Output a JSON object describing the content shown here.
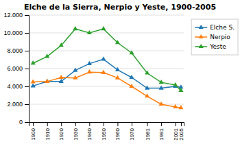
{
  "chart_data": {
    "type": "line",
    "title": "Elche de la Sierra, Nerpio y Yeste, 1900-2005",
    "x": [
      1900,
      1910,
      1920,
      1930,
      1940,
      1950,
      1960,
      1970,
      1981,
      1991,
      2001,
      2005
    ],
    "series": [
      {
        "name": "Elche S.",
        "values": [
          4050,
          4550,
          4550,
          5800,
          6550,
          7050,
          5850,
          5000,
          3800,
          3800,
          4000,
          3900
        ]
      },
      {
        "name": "Nerpio",
        "values": [
          4500,
          4550,
          5000,
          4950,
          5600,
          5550,
          4950,
          4000,
          2900,
          2000,
          1700,
          1600
        ]
      },
      {
        "name": "Yeste",
        "values": [
          6600,
          7350,
          8600,
          10450,
          10000,
          10450,
          8900,
          7750,
          5500,
          4450,
          4150,
          3550
        ]
      }
    ],
    "xlim": [
      1897,
      2007
    ],
    "xticks": [
      1900,
      1910,
      1920,
      1930,
      1940,
      1950,
      1960,
      1970,
      1981,
      1991,
      2001,
      2005
    ],
    "ylim": [
      0,
      12000
    ],
    "yticks": [
      0,
      {
        "value": 2000,
        "label": "2.000"
      },
      {
        "value": 4000,
        "label": "4.000"
      },
      {
        "value": 6000,
        "label": "6.000"
      },
      {
        "value": 8000,
        "label": "8.000"
      },
      {
        "value": 10000,
        "label": "10.000"
      },
      {
        "value": 12000,
        "label": "12.000"
      }
    ],
    "grid": "y",
    "legend": "right",
    "marker": "triangle"
  }
}
